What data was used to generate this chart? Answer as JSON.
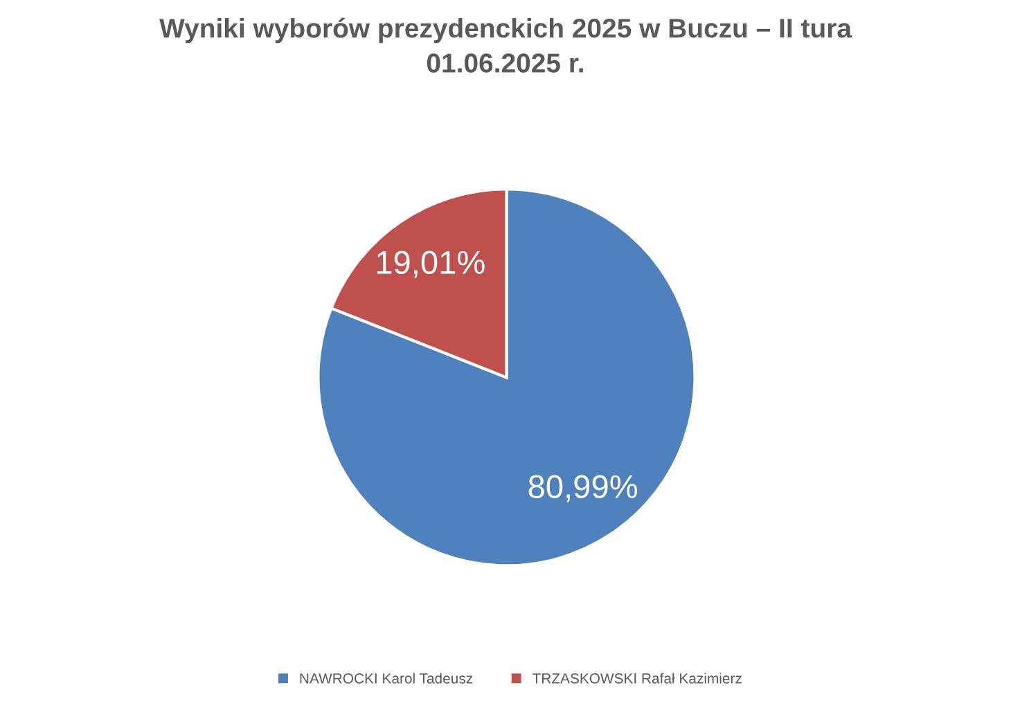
{
  "chart_data": {
    "type": "pie",
    "title": "Wyniki wyborów prezydenckich 2025 w Buczu – II tura\n01.06.2025 r.",
    "categories": [
      "NAWROCKI Karol Tadeusz",
      "TRZASKOWSKI Rafał Kazimierz"
    ],
    "values": [
      80.99,
      19.01
    ],
    "colors": [
      "#4f81bd",
      "#c0504d"
    ],
    "value_labels": [
      "80,99%",
      "19,01%"
    ],
    "legend": "bottom"
  }
}
